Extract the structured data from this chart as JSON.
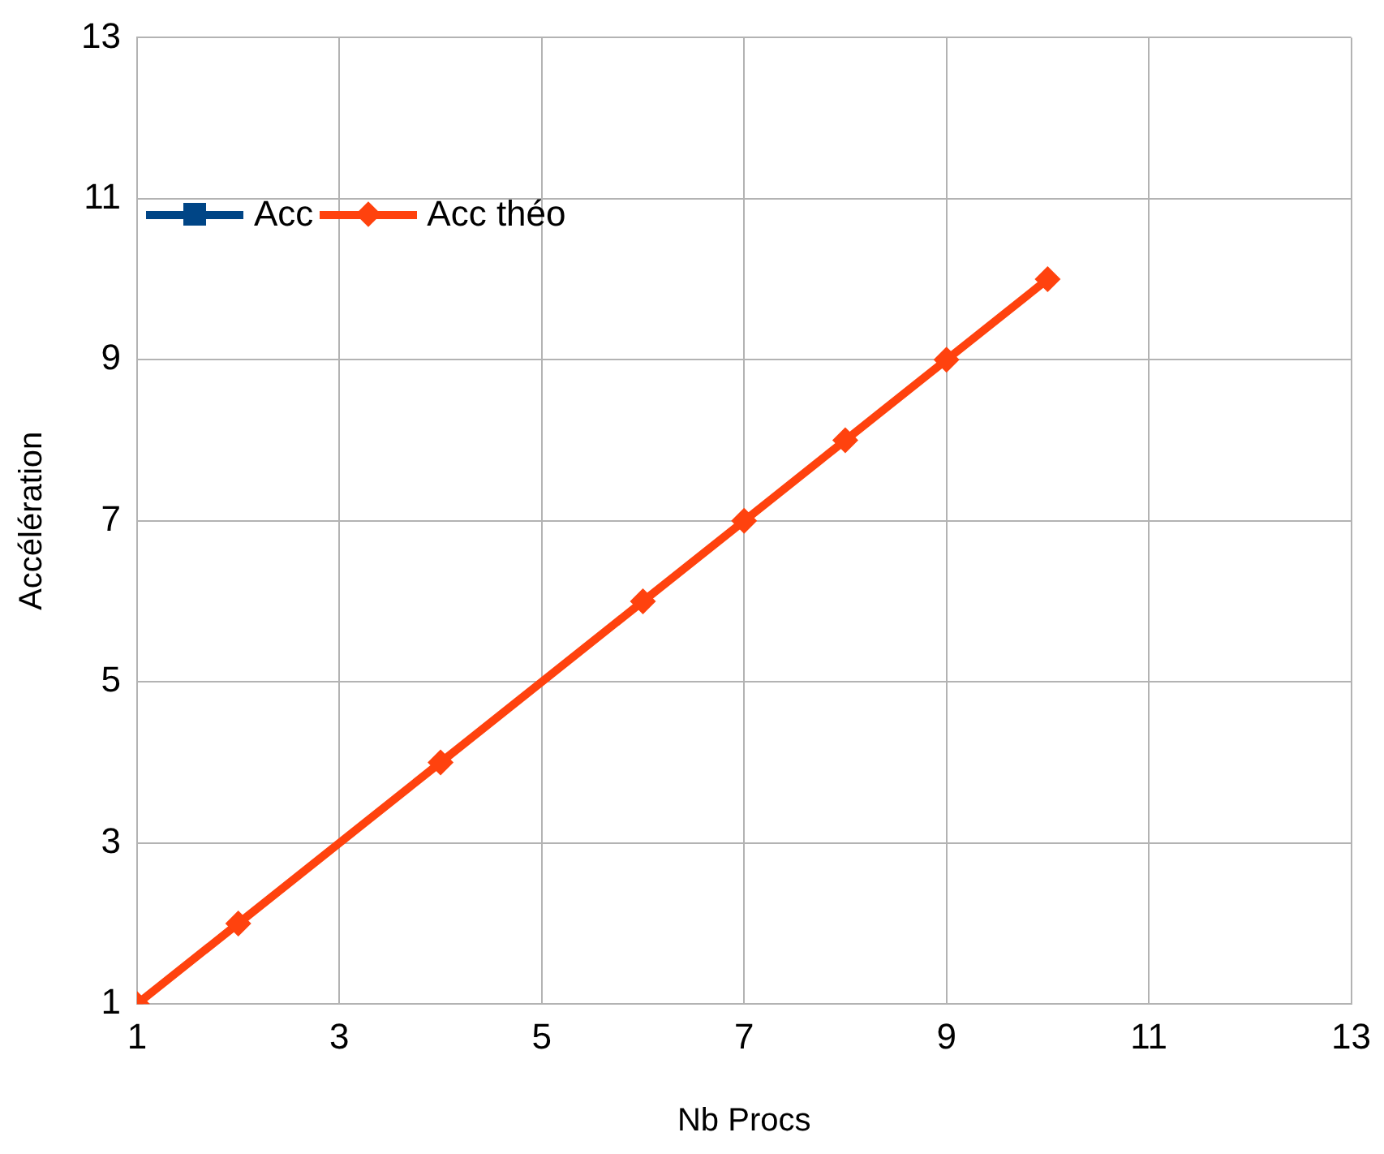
{
  "chart_data": {
    "type": "line",
    "xlabel": "Nb Procs",
    "ylabel": "Accélération",
    "x": [
      1,
      2,
      4,
      6,
      7,
      8,
      9,
      10
    ],
    "series": [
      {
        "name": "Acc",
        "color": "#004586",
        "marker": "square",
        "values": [
          null,
          null,
          null,
          null,
          null,
          null,
          null,
          null
        ]
      },
      {
        "name": "Acc théo",
        "color": "#ff420e",
        "marker": "diamond",
        "values": [
          1,
          2,
          4,
          6,
          7,
          8,
          9,
          10
        ]
      }
    ],
    "xlim": [
      1,
      13
    ],
    "xticks": [
      1,
      3,
      5,
      7,
      9,
      11,
      13
    ],
    "ylim": [
      1,
      13
    ],
    "yticks": [
      1,
      3,
      5,
      7,
      9,
      11,
      13
    ],
    "grid": true,
    "legend": "top left",
    "line_style": "solid"
  }
}
